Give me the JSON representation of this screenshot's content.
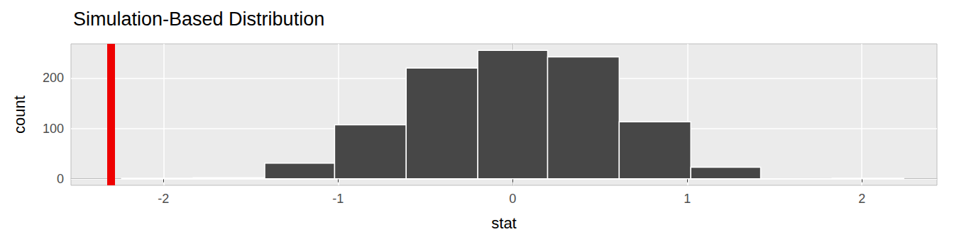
{
  "chart_data": {
    "type": "histogram",
    "title": "Simulation-Based Distribution",
    "x_label": "stat",
    "y_label": "count",
    "bins": [
      -2.24,
      -1.83,
      -1.42,
      -1.02,
      -0.61,
      -0.2,
      0.2,
      0.61,
      1.02,
      1.42,
      1.83,
      2.24
    ],
    "values": [
      1,
      2,
      31,
      107,
      220,
      255,
      242,
      113,
      23,
      0,
      1
    ],
    "color": "#474747",
    "obs_stat": -2.3,
    "obs_stat_color": "#ee0000",
    "xlim": [
      -2.53,
      2.43
    ],
    "xticks": [
      -2,
      -1,
      0,
      1,
      2
    ],
    "ylim": [
      -13,
      268
    ],
    "yticks": [
      0,
      100,
      200
    ],
    "grid": true
  }
}
